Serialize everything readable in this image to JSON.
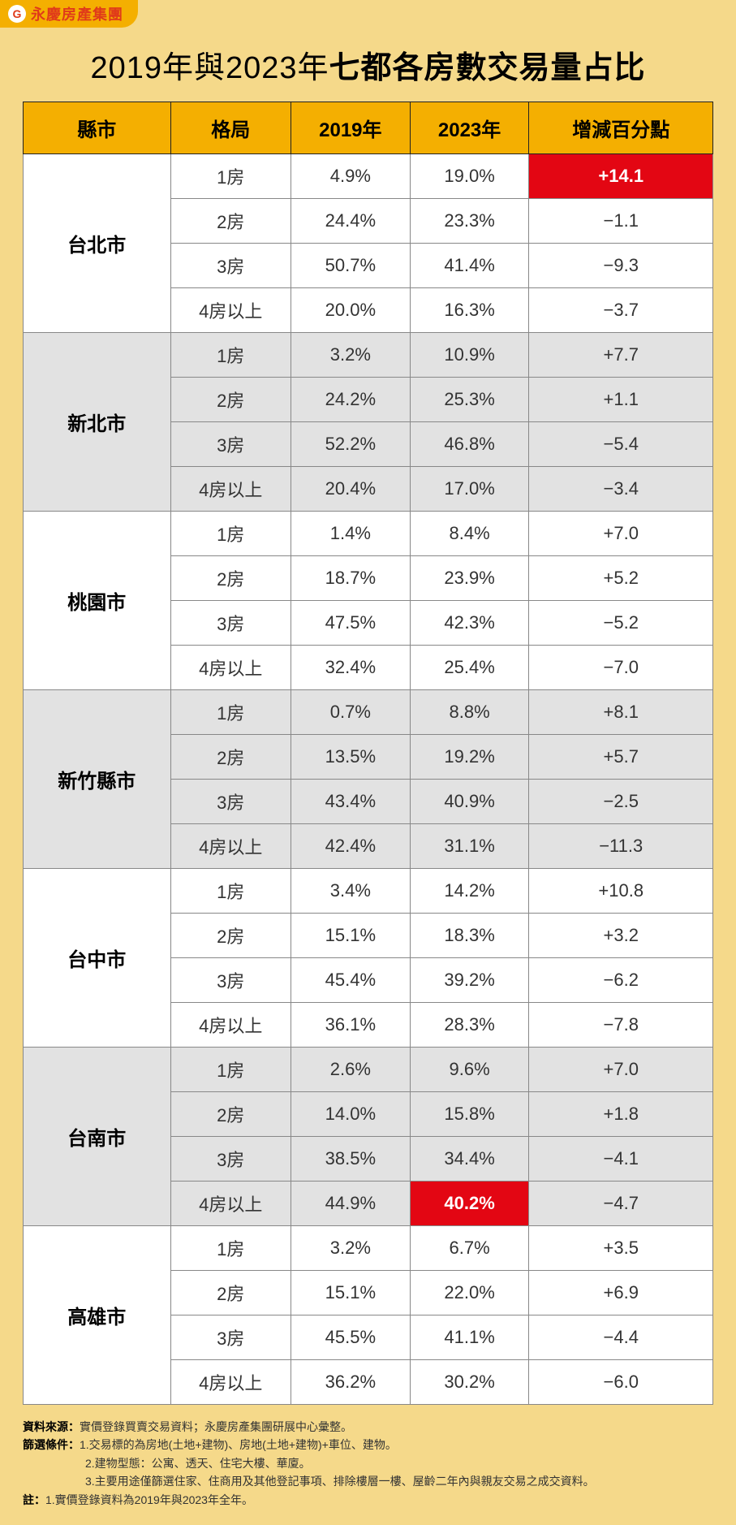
{
  "brand": "永慶房產集團",
  "title_prefix": "2019年與2023年",
  "title_bold": "七都各房數交易量占比",
  "columns": [
    "縣市",
    "格局",
    "2019年",
    "2023年",
    "增減百分點"
  ],
  "cities": [
    {
      "name": "台北市",
      "alt": false,
      "rows": [
        {
          "type": "1房",
          "y2019": "4.9%",
          "y2023": "19.0%",
          "diff": "+14.1",
          "hl_diff": true
        },
        {
          "type": "2房",
          "y2019": "24.4%",
          "y2023": "23.3%",
          "diff": "−1.1"
        },
        {
          "type": "3房",
          "y2019": "50.7%",
          "y2023": "41.4%",
          "diff": "−9.3"
        },
        {
          "type": "4房以上",
          "y2019": "20.0%",
          "y2023": "16.3%",
          "diff": "−3.7"
        }
      ]
    },
    {
      "name": "新北市",
      "alt": true,
      "rows": [
        {
          "type": "1房",
          "y2019": "3.2%",
          "y2023": "10.9%",
          "diff": "+7.7"
        },
        {
          "type": "2房",
          "y2019": "24.2%",
          "y2023": "25.3%",
          "diff": "+1.1"
        },
        {
          "type": "3房",
          "y2019": "52.2%",
          "y2023": "46.8%",
          "diff": "−5.4"
        },
        {
          "type": "4房以上",
          "y2019": "20.4%",
          "y2023": "17.0%",
          "diff": "−3.4"
        }
      ]
    },
    {
      "name": "桃園市",
      "alt": false,
      "rows": [
        {
          "type": "1房",
          "y2019": "1.4%",
          "y2023": "8.4%",
          "diff": "+7.0"
        },
        {
          "type": "2房",
          "y2019": "18.7%",
          "y2023": "23.9%",
          "diff": "+5.2"
        },
        {
          "type": "3房",
          "y2019": "47.5%",
          "y2023": "42.3%",
          "diff": "−5.2"
        },
        {
          "type": "4房以上",
          "y2019": "32.4%",
          "y2023": "25.4%",
          "diff": "−7.0"
        }
      ]
    },
    {
      "name": "新竹縣市",
      "alt": true,
      "rows": [
        {
          "type": "1房",
          "y2019": "0.7%",
          "y2023": "8.8%",
          "diff": "+8.1"
        },
        {
          "type": "2房",
          "y2019": "13.5%",
          "y2023": "19.2%",
          "diff": "+5.7"
        },
        {
          "type": "3房",
          "y2019": "43.4%",
          "y2023": "40.9%",
          "diff": "−2.5"
        },
        {
          "type": "4房以上",
          "y2019": "42.4%",
          "y2023": "31.1%",
          "diff": "−11.3"
        }
      ]
    },
    {
      "name": "台中市",
      "alt": false,
      "rows": [
        {
          "type": "1房",
          "y2019": "3.4%",
          "y2023": "14.2%",
          "diff": "+10.8"
        },
        {
          "type": "2房",
          "y2019": "15.1%",
          "y2023": "18.3%",
          "diff": "+3.2"
        },
        {
          "type": "3房",
          "y2019": "45.4%",
          "y2023": "39.2%",
          "diff": "−6.2"
        },
        {
          "type": "4房以上",
          "y2019": "36.1%",
          "y2023": "28.3%",
          "diff": "−7.8"
        }
      ]
    },
    {
      "name": "台南市",
      "alt": true,
      "rows": [
        {
          "type": "1房",
          "y2019": "2.6%",
          "y2023": "9.6%",
          "diff": "+7.0"
        },
        {
          "type": "2房",
          "y2019": "14.0%",
          "y2023": "15.8%",
          "diff": "+1.8"
        },
        {
          "type": "3房",
          "y2019": "38.5%",
          "y2023": "34.4%",
          "diff": "−4.1"
        },
        {
          "type": "4房以上",
          "y2019": "44.9%",
          "y2023": "40.2%",
          "diff": "−4.7",
          "hl_2023": true
        }
      ]
    },
    {
      "name": "高雄市",
      "alt": false,
      "rows": [
        {
          "type": "1房",
          "y2019": "3.2%",
          "y2023": "6.7%",
          "diff": "+3.5"
        },
        {
          "type": "2房",
          "y2019": "15.1%",
          "y2023": "22.0%",
          "diff": "+6.9"
        },
        {
          "type": "3房",
          "y2019": "45.5%",
          "y2023": "41.1%",
          "diff": "−4.4"
        },
        {
          "type": "4房以上",
          "y2019": "36.2%",
          "y2023": "30.2%",
          "diff": "−6.0"
        }
      ]
    }
  ],
  "footer": {
    "source_label": "資料來源：",
    "source_text": "實價登錄買賣交易資料；永慶房產集團研展中心彙整。",
    "filter_label": "篩選條件：",
    "filter_1": "1.交易標的為房地(土地+建物)、房地(土地+建物)+車位、建物。",
    "filter_2": "2.建物型態：公寓、透天、住宅大樓、華廈。",
    "filter_3": "3.主要用途僅篩選住家、住商用及其他登記事項、排除樓層一樓、屋齡二年內與親友交易之成交資料。",
    "note_label": "註：",
    "note_text": "1.實價登錄資料為2019年與2023年全年。"
  },
  "colors": {
    "page_bg": "#f5d98a",
    "header_orange": "#f4af01",
    "highlight_red": "#e30613",
    "alt_row": "#e2e2e2",
    "border": "#888888"
  }
}
